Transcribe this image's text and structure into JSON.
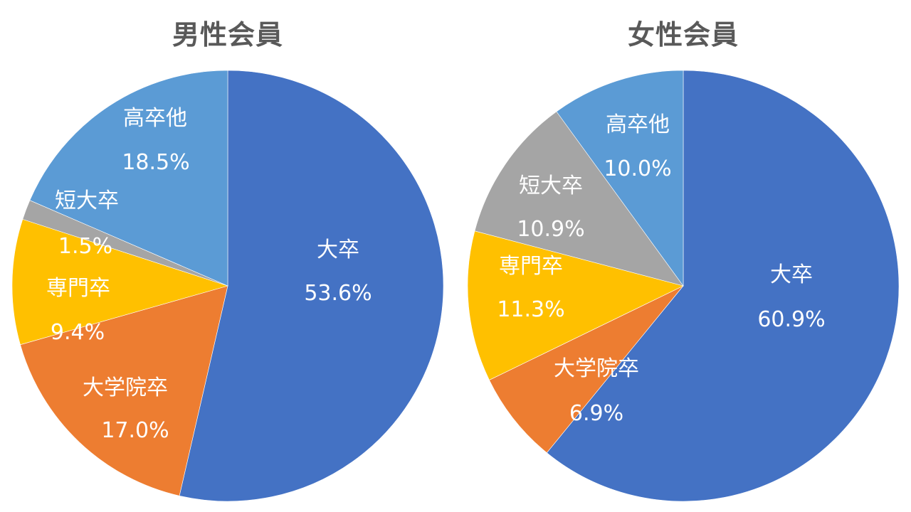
{
  "colors": {
    "daisotsu": "#4472C4",
    "daigakuin": "#ED7D31",
    "senmon": "#FFC000",
    "tandai": "#A5A5A5",
    "kousotsu": "#5B9BD5",
    "title": "#595959"
  },
  "chart_data": [
    {
      "type": "pie",
      "title": "男性会員",
      "categories": [
        "大卒",
        "大学院卒",
        "専門卒",
        "短大卒",
        "高卒他"
      ],
      "values": [
        53.6,
        17.0,
        9.4,
        1.5,
        18.5
      ],
      "labels": [
        "53.6%",
        "17.0%",
        "9.4%",
        "1.5%",
        "18.5%"
      ],
      "start_angle": "12 o'clock, clockwise",
      "legend": "none (data labels inside slices)"
    },
    {
      "type": "pie",
      "title": "女性会員",
      "categories": [
        "大卒",
        "大学院卒",
        "専門卒",
        "短大卒",
        "高卒他"
      ],
      "values": [
        60.9,
        6.9,
        11.3,
        10.9,
        10.0
      ],
      "labels": [
        "60.9%",
        "6.9%",
        "11.3%",
        "10.9%",
        "10.0%"
      ],
      "start_angle": "12 o'clock, clockwise",
      "legend": "none (data labels inside slices)"
    }
  ],
  "left": {
    "title": "男性会員",
    "slices": [
      {
        "name": "大卒",
        "pct": "53.6%"
      },
      {
        "name": "大学院卒",
        "pct": "17.0%"
      },
      {
        "name": "専門卒",
        "pct": "9.4%"
      },
      {
        "name": "短大卒",
        "pct": "1.5%"
      },
      {
        "name": "高卒他",
        "pct": "18.5%"
      }
    ]
  },
  "right": {
    "title": "女性会員",
    "slices": [
      {
        "name": "大卒",
        "pct": "60.9%"
      },
      {
        "name": "大学院卒",
        "pct": "6.9%"
      },
      {
        "name": "専門卒",
        "pct": "11.3%"
      },
      {
        "name": "短大卒",
        "pct": "10.9%"
      },
      {
        "name": "高卒他",
        "pct": "10.0%"
      }
    ]
  }
}
